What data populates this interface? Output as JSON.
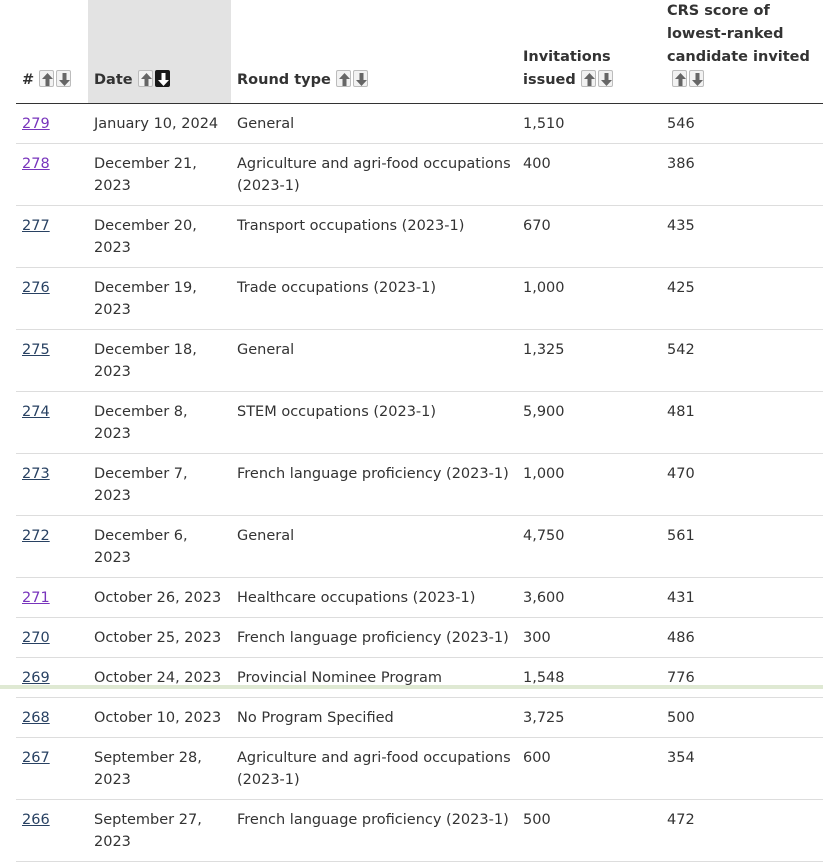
{
  "table": {
    "headers": {
      "num": "#",
      "date": "Date",
      "round_type": "Round type",
      "invitations": "Invitations issued",
      "crs": "CRS score of lowest-ranked candidate invited"
    },
    "sort": {
      "column": "date",
      "direction": "descending",
      "up_icon": "arrow-up-icon",
      "down_icon": "arrow-down-icon"
    },
    "rows": [
      {
        "num": "279",
        "date": "January 10, 2024",
        "round_type": "General",
        "invitations": "1,510",
        "crs": "546",
        "visited": true
      },
      {
        "num": "278",
        "date": "December 21, 2023",
        "round_type": "Agriculture and agri-food occupations (2023-1)",
        "invitations": "400",
        "crs": "386",
        "visited": true
      },
      {
        "num": "277",
        "date": "December 20, 2023",
        "round_type": "Transport occupations (2023-1)",
        "invitations": "670",
        "crs": "435",
        "visited": false
      },
      {
        "num": "276",
        "date": "December 19, 2023",
        "round_type": "Trade occupations (2023-1)",
        "invitations": "1,000",
        "crs": "425",
        "visited": false
      },
      {
        "num": "275",
        "date": "December 18, 2023",
        "round_type": "General",
        "invitations": "1,325",
        "crs": "542",
        "visited": false
      },
      {
        "num": "274",
        "date": "December 8, 2023",
        "round_type": "STEM occupations (2023-1)",
        "invitations": "5,900",
        "crs": "481",
        "visited": false
      },
      {
        "num": "273",
        "date": "December 7, 2023",
        "round_type": "French language proficiency (2023-1)",
        "invitations": "1,000",
        "crs": "470",
        "visited": false
      },
      {
        "num": "272",
        "date": "December 6, 2023",
        "round_type": "General",
        "invitations": "4,750",
        "crs": "561",
        "visited": false
      },
      {
        "num": "271",
        "date": "October 26, 2023",
        "round_type": "Healthcare occupations (2023-1)",
        "invitations": "3,600",
        "crs": "431",
        "visited": true
      },
      {
        "num": "270",
        "date": "October 25, 2023",
        "round_type": "French language proficiency (2023-1)",
        "invitations": "300",
        "crs": "486",
        "visited": false
      },
      {
        "num": "269",
        "date": "October 24, 2023",
        "round_type": "Provincial Nominee Program",
        "invitations": "1,548",
        "crs": "776",
        "visited": false
      },
      {
        "num": "268",
        "date": "October 10, 2023",
        "round_type": "No Program Specified",
        "invitations": "3,725",
        "crs": "500",
        "visited": false
      },
      {
        "num": "267",
        "date": "September 28, 2023",
        "round_type": "Agriculture and agri-food occupations (2023-1)",
        "invitations": "600",
        "crs": "354",
        "visited": false
      },
      {
        "num": "266",
        "date": "September 27, 2023",
        "round_type": "French language proficiency (2023-1)",
        "invitations": "500",
        "crs": "472",
        "visited": false
      }
    ]
  },
  "colors": {
    "link": "#284162",
    "link_visited": "#7834bc",
    "sorted_header_bg": "#e3e3e3"
  }
}
